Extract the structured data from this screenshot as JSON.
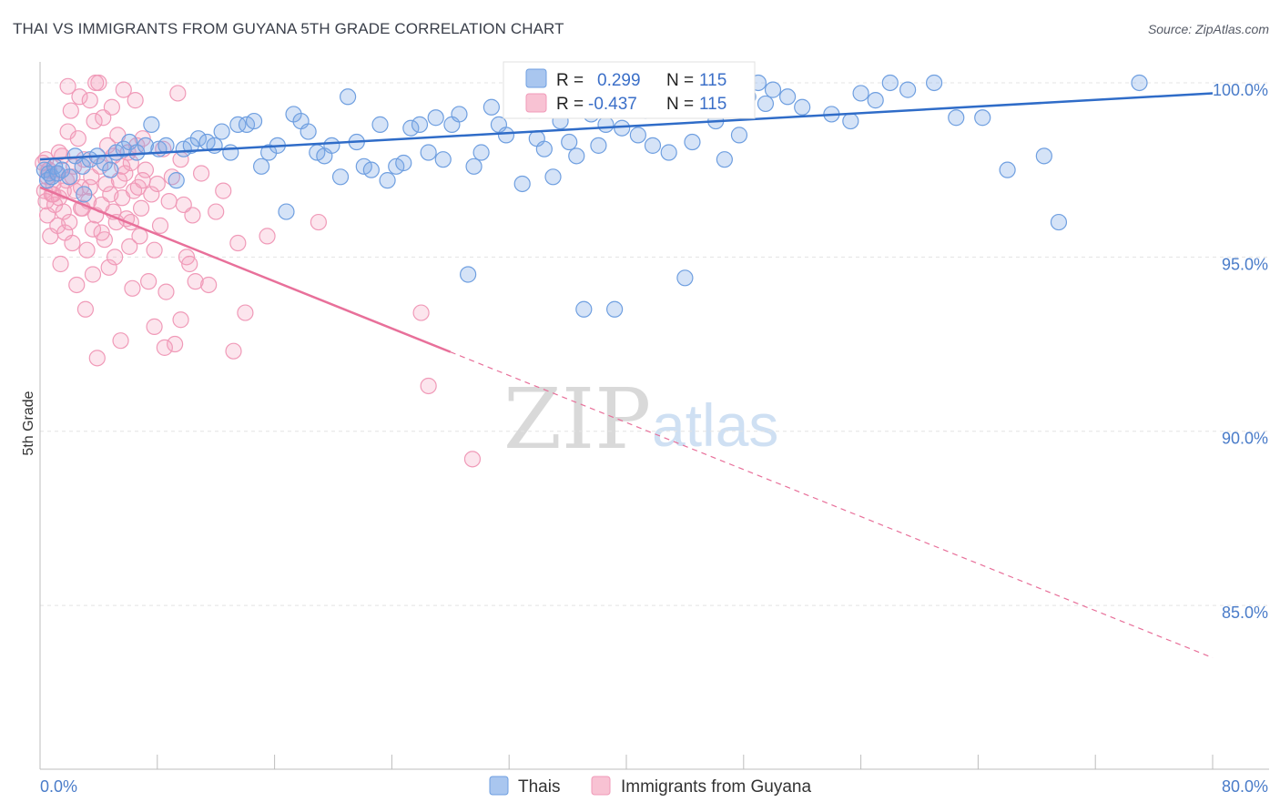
{
  "header": {
    "title": "THAI VS IMMIGRANTS FROM GUYANA 5TH GRADE CORRELATION CHART",
    "source": "Source: ZipAtlas.com"
  },
  "watermark": {
    "zip": "ZIP",
    "atlas": "atlas"
  },
  "colors": {
    "blue": "#6f9fe0",
    "blue_line": "#2f6cc8",
    "pink": "#f09ab8",
    "pink_line": "#e8709a"
  },
  "chart_data": {
    "type": "scatter",
    "title": "THAI VS IMMIGRANTS FROM GUYANA 5TH GRADE CORRELATION CHART",
    "xlabel": "",
    "ylabel": "5th Grade",
    "xlim": [
      0,
      80
    ],
    "ylim": [
      80.3,
      100.6
    ],
    "x_tick_labels": [
      "0.0%",
      "80.0%"
    ],
    "y_ticks": [
      {
        "value": 100,
        "label": "100.0%"
      },
      {
        "value": 95,
        "label": "95.0%"
      },
      {
        "value": 90,
        "label": "90.0%"
      },
      {
        "value": 85,
        "label": "85.0%"
      }
    ],
    "legend": {
      "r_label": "R =",
      "n_label": "N =",
      "entries": [
        {
          "r": "0.299",
          "n": "115"
        },
        {
          "r": "-0.437",
          "n": "115"
        }
      ]
    },
    "series": [
      {
        "name": "Thais",
        "r": 0.299,
        "n": 115,
        "trend": {
          "x0": 0,
          "y0": 97.8,
          "x1": 80,
          "y1": 99.7,
          "dash_from": null
        },
        "points": [
          [
            0.3,
            97.5
          ],
          [
            0.5,
            97.2
          ],
          [
            0.6,
            97.4
          ],
          [
            0.8,
            97.3
          ],
          [
            1.0,
            97.6
          ],
          [
            1.2,
            97.4
          ],
          [
            1.5,
            97.5
          ],
          [
            2.0,
            97.3
          ],
          [
            2.4,
            97.9
          ],
          [
            2.9,
            97.6
          ],
          [
            3.4,
            97.8
          ],
          [
            3.9,
            97.9
          ],
          [
            4.4,
            97.7
          ],
          [
            4.8,
            97.5
          ],
          [
            5.2,
            98.0
          ],
          [
            5.7,
            98.1
          ],
          [
            6.1,
            98.3
          ],
          [
            6.6,
            98.0
          ],
          [
            7.2,
            98.2
          ],
          [
            7.6,
            98.8
          ],
          [
            8.1,
            98.1
          ],
          [
            8.6,
            98.2
          ],
          [
            9.3,
            97.2
          ],
          [
            9.8,
            98.1
          ],
          [
            10.3,
            98.2
          ],
          [
            10.8,
            98.4
          ],
          [
            11.4,
            98.3
          ],
          [
            11.9,
            98.2
          ],
          [
            12.4,
            98.6
          ],
          [
            13.0,
            98.0
          ],
          [
            13.5,
            98.8
          ],
          [
            14.1,
            98.8
          ],
          [
            14.6,
            98.9
          ],
          [
            15.1,
            97.6
          ],
          [
            15.6,
            98.0
          ],
          [
            16.2,
            98.2
          ],
          [
            16.8,
            96.3
          ],
          [
            17.3,
            99.1
          ],
          [
            17.8,
            98.9
          ],
          [
            18.3,
            98.6
          ],
          [
            18.9,
            98.0
          ],
          [
            19.4,
            97.9
          ],
          [
            19.9,
            98.2
          ],
          [
            20.5,
            97.3
          ],
          [
            21.0,
            99.6
          ],
          [
            21.6,
            98.3
          ],
          [
            22.1,
            97.6
          ],
          [
            22.6,
            97.5
          ],
          [
            23.2,
            98.8
          ],
          [
            23.7,
            97.2
          ],
          [
            24.3,
            97.6
          ],
          [
            24.8,
            97.7
          ],
          [
            25.3,
            98.7
          ],
          [
            25.9,
            98.8
          ],
          [
            26.5,
            98.0
          ],
          [
            27.0,
            99.0
          ],
          [
            27.5,
            97.8
          ],
          [
            28.1,
            98.8
          ],
          [
            28.6,
            99.1
          ],
          [
            29.2,
            94.5
          ],
          [
            29.6,
            97.6
          ],
          [
            30.1,
            98.0
          ],
          [
            30.8,
            99.3
          ],
          [
            31.3,
            98.8
          ],
          [
            31.8,
            98.5
          ],
          [
            32.3,
            100.0
          ],
          [
            32.9,
            97.1
          ],
          [
            33.4,
            99.2
          ],
          [
            33.9,
            98.4
          ],
          [
            34.4,
            98.1
          ],
          [
            35.0,
            97.3
          ],
          [
            35.5,
            98.9
          ],
          [
            36.1,
            98.3
          ],
          [
            36.6,
            97.9
          ],
          [
            37.1,
            93.5
          ],
          [
            37.6,
            99.1
          ],
          [
            38.1,
            98.2
          ],
          [
            38.6,
            98.8
          ],
          [
            39.2,
            93.5
          ],
          [
            39.7,
            98.7
          ],
          [
            40.2,
            99.6
          ],
          [
            40.8,
            98.5
          ],
          [
            41.3,
            99.2
          ],
          [
            41.8,
            98.2
          ],
          [
            42.4,
            99.5
          ],
          [
            42.9,
            98.0
          ],
          [
            43.5,
            99.8
          ],
          [
            44.0,
            94.4
          ],
          [
            44.5,
            98.3
          ],
          [
            45.1,
            100.0
          ],
          [
            45.6,
            99.4
          ],
          [
            46.1,
            98.9
          ],
          [
            46.7,
            97.8
          ],
          [
            47.2,
            99.3
          ],
          [
            47.7,
            98.5
          ],
          [
            48.3,
            99.6
          ],
          [
            49.0,
            100.0
          ],
          [
            49.5,
            99.4
          ],
          [
            50.0,
            99.8
          ],
          [
            51.0,
            99.6
          ],
          [
            52.0,
            99.3
          ],
          [
            54.0,
            99.1
          ],
          [
            55.3,
            98.9
          ],
          [
            56.0,
            99.7
          ],
          [
            57.0,
            99.5
          ],
          [
            58.0,
            100.0
          ],
          [
            59.2,
            99.8
          ],
          [
            61.0,
            100.0
          ],
          [
            62.5,
            99.0
          ],
          [
            64.3,
            99.0
          ],
          [
            66.0,
            97.5
          ],
          [
            68.5,
            97.9
          ],
          [
            69.5,
            96.0
          ],
          [
            75.0,
            100.0
          ],
          [
            3.0,
            96.8
          ]
        ]
      },
      {
        "name": "Immigrants from Guyana",
        "r": -0.437,
        "n": 115,
        "trend": {
          "x0": 0,
          "y0": 97.0,
          "x1": 80,
          "y1": 83.5,
          "dash_from": 28
        },
        "points": [
          [
            0.2,
            97.7
          ],
          [
            0.3,
            96.9
          ],
          [
            0.4,
            96.6
          ],
          [
            0.5,
            97.3
          ],
          [
            0.5,
            96.2
          ],
          [
            0.6,
            97.5
          ],
          [
            0.7,
            95.6
          ],
          [
            0.8,
            96.8
          ],
          [
            0.9,
            97.1
          ],
          [
            1.0,
            96.5
          ],
          [
            1.1,
            97.4
          ],
          [
            1.2,
            95.9
          ],
          [
            1.3,
            96.7
          ],
          [
            1.4,
            94.8
          ],
          [
            1.5,
            97.9
          ],
          [
            1.6,
            96.3
          ],
          [
            1.7,
            95.7
          ],
          [
            1.8,
            97.2
          ],
          [
            1.9,
            98.6
          ],
          [
            2.0,
            96.0
          ],
          [
            2.1,
            99.2
          ],
          [
            2.2,
            95.4
          ],
          [
            2.3,
            97.6
          ],
          [
            2.4,
            96.9
          ],
          [
            2.5,
            94.2
          ],
          [
            2.6,
            98.4
          ],
          [
            2.7,
            99.6
          ],
          [
            2.8,
            97.0
          ],
          [
            2.9,
            96.4
          ],
          [
            3.0,
            97.8
          ],
          [
            3.1,
            93.5
          ],
          [
            3.2,
            95.2
          ],
          [
            3.3,
            96.6
          ],
          [
            3.4,
            99.5
          ],
          [
            3.5,
            97.3
          ],
          [
            3.6,
            95.8
          ],
          [
            3.7,
            98.9
          ],
          [
            3.8,
            96.2
          ],
          [
            3.9,
            92.1
          ],
          [
            4.0,
            100.0
          ],
          [
            4.1,
            97.6
          ],
          [
            4.2,
            96.5
          ],
          [
            4.3,
            99.0
          ],
          [
            4.4,
            95.5
          ],
          [
            4.5,
            97.1
          ],
          [
            4.6,
            98.2
          ],
          [
            4.7,
            94.7
          ],
          [
            4.8,
            96.8
          ],
          [
            4.9,
            99.3
          ],
          [
            5.0,
            97.9
          ],
          [
            5.1,
            95.0
          ],
          [
            5.2,
            96.0
          ],
          [
            5.3,
            98.5
          ],
          [
            5.4,
            97.2
          ],
          [
            5.5,
            92.6
          ],
          [
            5.6,
            96.7
          ],
          [
            5.7,
            99.8
          ],
          [
            5.8,
            97.4
          ],
          [
            5.9,
            96.1
          ],
          [
            6.0,
            98.0
          ],
          [
            6.1,
            95.3
          ],
          [
            6.2,
            97.7
          ],
          [
            6.3,
            94.1
          ],
          [
            6.4,
            96.9
          ],
          [
            6.5,
            99.5
          ],
          [
            6.6,
            98.2
          ],
          [
            6.7,
            97.0
          ],
          [
            6.8,
            95.6
          ],
          [
            6.9,
            96.4
          ],
          [
            7.0,
            98.4
          ],
          [
            7.2,
            97.5
          ],
          [
            7.4,
            94.3
          ],
          [
            7.6,
            96.8
          ],
          [
            7.8,
            93.0
          ],
          [
            8.0,
            97.1
          ],
          [
            8.2,
            95.9
          ],
          [
            8.4,
            98.1
          ],
          [
            8.6,
            94.0
          ],
          [
            8.8,
            96.6
          ],
          [
            9.0,
            97.3
          ],
          [
            9.2,
            92.5
          ],
          [
            9.4,
            99.7
          ],
          [
            9.6,
            97.8
          ],
          [
            9.8,
            96.5
          ],
          [
            10.0,
            95.0
          ],
          [
            10.2,
            94.8
          ],
          [
            10.4,
            96.2
          ],
          [
            11.0,
            97.4
          ],
          [
            12.0,
            96.3
          ],
          [
            13.5,
            95.4
          ],
          [
            15.5,
            95.6
          ],
          [
            19.0,
            96.0
          ],
          [
            26.0,
            93.4
          ],
          [
            26.5,
            91.3
          ],
          [
            29.5,
            89.2
          ],
          [
            0.6,
            97.5
          ],
          [
            0.9,
            96.8
          ],
          [
            1.3,
            98.0
          ],
          [
            1.6,
            96.9
          ],
          [
            2.2,
            97.3
          ],
          [
            2.8,
            96.4
          ],
          [
            3.4,
            97.0
          ],
          [
            3.6,
            94.5
          ],
          [
            4.2,
            95.7
          ],
          [
            5.0,
            96.3
          ],
          [
            5.6,
            97.6
          ],
          [
            6.2,
            96.0
          ],
          [
            7.0,
            97.2
          ],
          [
            7.8,
            95.2
          ],
          [
            8.5,
            92.4
          ],
          [
            9.6,
            93.2
          ],
          [
            10.6,
            94.3
          ],
          [
            11.5,
            94.2
          ],
          [
            12.5,
            96.9
          ],
          [
            13.2,
            92.3
          ],
          [
            14.0,
            93.4
          ],
          [
            0.4,
            97.8
          ],
          [
            1.9,
            99.9
          ],
          [
            3.8,
            100.0
          ]
        ]
      }
    ]
  },
  "bottom_legend": [
    "Thais",
    "Immigrants from Guyana"
  ]
}
